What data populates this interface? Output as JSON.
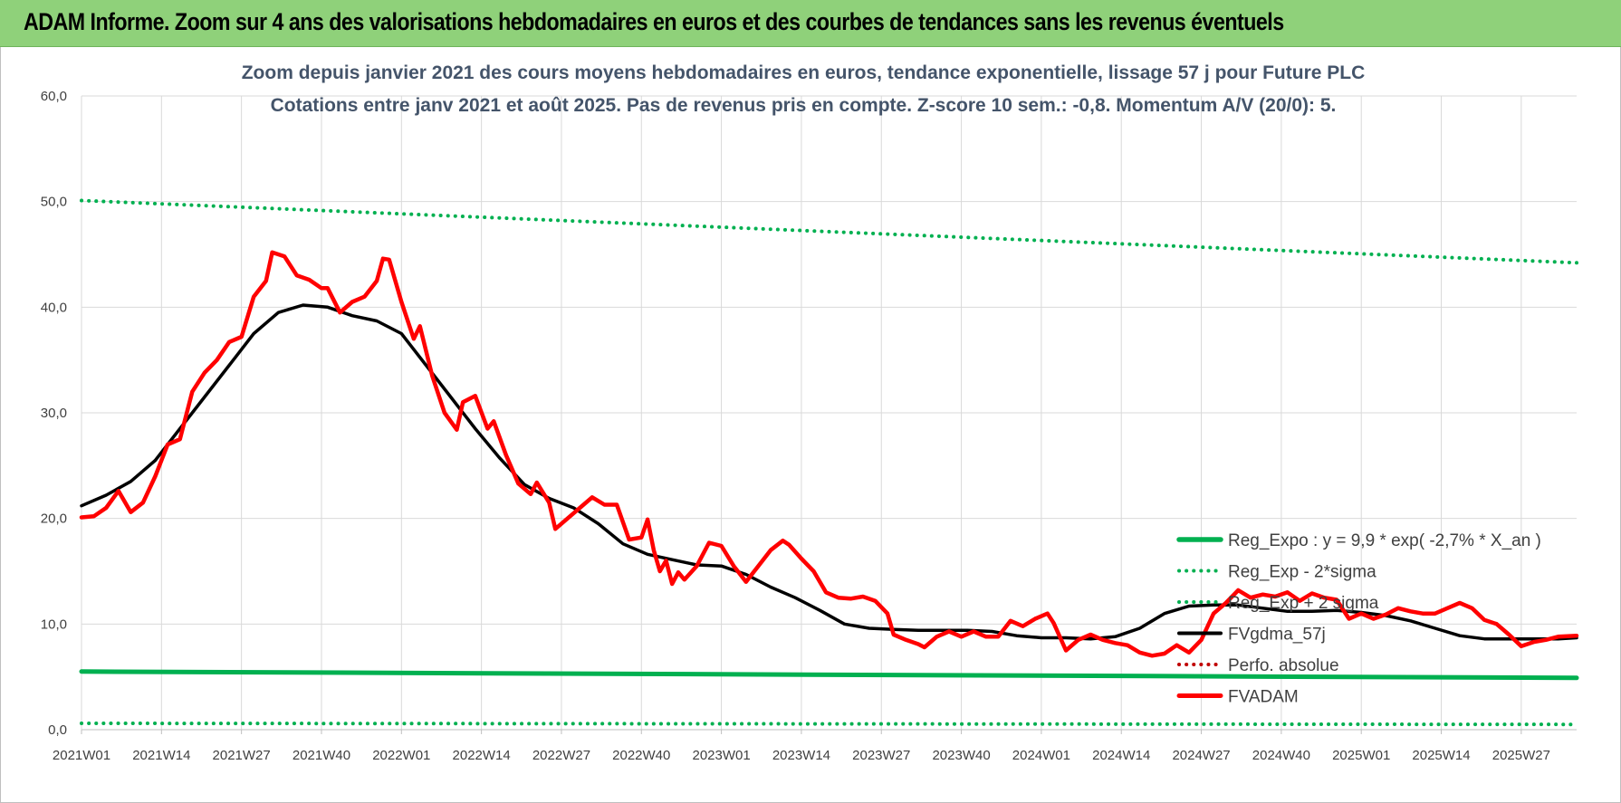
{
  "banner": {
    "title": "ADAM Informe. Zoom sur 4 ans des valorisations hebdomadaires en euros et des courbes de tendances sans les revenus éventuels"
  },
  "colors": {
    "banner": "#8fd17a",
    "fvadam": "#ff0000",
    "fvgdma": "#000000",
    "reg": "#00b050",
    "perfo": "#c00000",
    "grid": "#d9d9d9",
    "title": "#44546a"
  },
  "chart_data": {
    "type": "line",
    "title": "Zoom depuis janvier 2021 des cours moyens hebdomadaires en euros, tendance exponentielle, lissage 57 j pour Future PLC",
    "subtitle": "Cotations entre janv 2021 et août 2025.  Pas de revenus pris en compte. Z-score 10 sem.: -0,8. Momentum A/V (20/0): 5.",
    "ylim": [
      0,
      60
    ],
    "yticks": [
      "0,0",
      "10,0",
      "20,0",
      "30,0",
      "40,0",
      "50,0",
      "60,0"
    ],
    "grid": true,
    "legend_position": "bottom-right",
    "x_tick_labels": [
      {
        "label": "2021W01",
        "week": 0
      },
      {
        "label": "2021W14",
        "week": 13
      },
      {
        "label": "2021W27",
        "week": 26
      },
      {
        "label": "2021W40",
        "week": 39
      },
      {
        "label": "2022W01",
        "week": 52
      },
      {
        "label": "2022W14",
        "week": 65
      },
      {
        "label": "2022W27",
        "week": 78
      },
      {
        "label": "2022W40",
        "week": 91
      },
      {
        "label": "2023W01",
        "week": 104
      },
      {
        "label": "2023W14",
        "week": 117
      },
      {
        "label": "2023W27",
        "week": 130
      },
      {
        "label": "2023W40",
        "week": 143
      },
      {
        "label": "2024W01",
        "week": 156
      },
      {
        "label": "2024W14",
        "week": 169
      },
      {
        "label": "2024W27",
        "week": 182
      },
      {
        "label": "2024W40",
        "week": 195
      },
      {
        "label": "2025W01",
        "week": 208
      },
      {
        "label": "2025W14",
        "week": 221
      },
      {
        "label": "2025W27",
        "week": 234
      }
    ],
    "x_range_weeks": [
      0,
      243
    ],
    "series": [
      {
        "name": "Reg_Expo : y = 9,9 * exp( -2,7% *  X_an )",
        "key": "reg",
        "style": "solid-thick",
        "points": [
          [
            0,
            5.5
          ],
          [
            243,
            4.9
          ]
        ]
      },
      {
        "name": "Reg_Exp - 2*sigma",
        "key": "reg_minus",
        "style": "dotted",
        "points": [
          [
            0,
            0.6
          ],
          [
            243,
            0.5
          ]
        ]
      },
      {
        "name": "Reg_Exp + 2 sigma",
        "key": "reg_plus",
        "style": "dotted",
        "points": [
          [
            0,
            50.1
          ],
          [
            243,
            44.2
          ]
        ]
      },
      {
        "name": "FVgdma_57j",
        "key": "fvgdma",
        "style": "solid",
        "points": [
          [
            0,
            21.2
          ],
          [
            4,
            22.2
          ],
          [
            8,
            23.5
          ],
          [
            12,
            25.5
          ],
          [
            16,
            28.5
          ],
          [
            20,
            31.5
          ],
          [
            24,
            34.5
          ],
          [
            28,
            37.5
          ],
          [
            32,
            39.5
          ],
          [
            36,
            40.2
          ],
          [
            40,
            40.0
          ],
          [
            44,
            39.2
          ],
          [
            48,
            38.7
          ],
          [
            52,
            37.5
          ],
          [
            56,
            34.5
          ],
          [
            60,
            31.5
          ],
          [
            64,
            28.5
          ],
          [
            68,
            25.7
          ],
          [
            72,
            23.2
          ],
          [
            76,
            21.9
          ],
          [
            80,
            21.0
          ],
          [
            84,
            19.5
          ],
          [
            88,
            17.6
          ],
          [
            92,
            16.6
          ],
          [
            96,
            16.1
          ],
          [
            100,
            15.6
          ],
          [
            104,
            15.5
          ],
          [
            108,
            14.7
          ],
          [
            112,
            13.5
          ],
          [
            116,
            12.5
          ],
          [
            120,
            11.3
          ],
          [
            124,
            10.0
          ],
          [
            128,
            9.6
          ],
          [
            132,
            9.5
          ],
          [
            136,
            9.4
          ],
          [
            140,
            9.4
          ],
          [
            144,
            9.4
          ],
          [
            148,
            9.3
          ],
          [
            152,
            8.9
          ],
          [
            156,
            8.7
          ],
          [
            160,
            8.7
          ],
          [
            164,
            8.6
          ],
          [
            168,
            8.8
          ],
          [
            172,
            9.6
          ],
          [
            176,
            11.0
          ],
          [
            180,
            11.7
          ],
          [
            184,
            11.8
          ],
          [
            188,
            11.8
          ],
          [
            192,
            11.5
          ],
          [
            196,
            11.2
          ],
          [
            200,
            11.2
          ],
          [
            204,
            11.3
          ],
          [
            208,
            11.1
          ],
          [
            212,
            10.8
          ],
          [
            216,
            10.3
          ],
          [
            220,
            9.6
          ],
          [
            224,
            8.9
          ],
          [
            228,
            8.6
          ],
          [
            232,
            8.6
          ],
          [
            236,
            8.6
          ],
          [
            240,
            8.6
          ],
          [
            243,
            8.7
          ]
        ]
      },
      {
        "name": "Perfo. absolue",
        "key": "perfo",
        "style": "dotted",
        "points": []
      },
      {
        "name": "FVADAM",
        "key": "fvadam",
        "style": "solid-thick",
        "points": [
          [
            0,
            20.1
          ],
          [
            2,
            20.2
          ],
          [
            4,
            21.0
          ],
          [
            6,
            22.6
          ],
          [
            8,
            20.6
          ],
          [
            10,
            21.5
          ],
          [
            12,
            24.0
          ],
          [
            14,
            27.0
          ],
          [
            16,
            27.5
          ],
          [
            18,
            32.0
          ],
          [
            20,
            33.8
          ],
          [
            22,
            35.0
          ],
          [
            24,
            36.7
          ],
          [
            26,
            37.2
          ],
          [
            28,
            41.0
          ],
          [
            30,
            42.5
          ],
          [
            31,
            45.2
          ],
          [
            33,
            44.8
          ],
          [
            35,
            43.0
          ],
          [
            37,
            42.6
          ],
          [
            39,
            41.8
          ],
          [
            40,
            41.8
          ],
          [
            42,
            39.5
          ],
          [
            44,
            40.5
          ],
          [
            46,
            41.0
          ],
          [
            48,
            42.5
          ],
          [
            49,
            44.6
          ],
          [
            50,
            44.5
          ],
          [
            52,
            40.5
          ],
          [
            54,
            37.0
          ],
          [
            55,
            38.2
          ],
          [
            57,
            33.5
          ],
          [
            59,
            30.0
          ],
          [
            61,
            28.4
          ],
          [
            62,
            31.0
          ],
          [
            64,
            31.6
          ],
          [
            66,
            28.5
          ],
          [
            67,
            29.2
          ],
          [
            69,
            26.0
          ],
          [
            71,
            23.3
          ],
          [
            73,
            22.3
          ],
          [
            74,
            23.4
          ],
          [
            76,
            21.5
          ],
          [
            77,
            19.0
          ],
          [
            79,
            20.0
          ],
          [
            81,
            21.0
          ],
          [
            83,
            22.0
          ],
          [
            85,
            21.3
          ],
          [
            87,
            21.3
          ],
          [
            89,
            18.0
          ],
          [
            91,
            18.2
          ],
          [
            92,
            19.9
          ],
          [
            93,
            17.0
          ],
          [
            94,
            15.0
          ],
          [
            95,
            16.0
          ],
          [
            96,
            13.8
          ],
          [
            97,
            14.9
          ],
          [
            98,
            14.2
          ],
          [
            100,
            15.5
          ],
          [
            102,
            17.7
          ],
          [
            104,
            17.4
          ],
          [
            106,
            15.5
          ],
          [
            108,
            14.0
          ],
          [
            110,
            15.5
          ],
          [
            112,
            17.0
          ],
          [
            114,
            17.9
          ],
          [
            115,
            17.5
          ],
          [
            117,
            16.2
          ],
          [
            119,
            15.0
          ],
          [
            121,
            13.0
          ],
          [
            123,
            12.5
          ],
          [
            125,
            12.4
          ],
          [
            127,
            12.6
          ],
          [
            129,
            12.2
          ],
          [
            131,
            11.0
          ],
          [
            132,
            9.0
          ],
          [
            134,
            8.5
          ],
          [
            136,
            8.1
          ],
          [
            137,
            7.8
          ],
          [
            139,
            8.8
          ],
          [
            141,
            9.3
          ],
          [
            143,
            8.8
          ],
          [
            145,
            9.3
          ],
          [
            147,
            8.8
          ],
          [
            149,
            8.8
          ],
          [
            151,
            10.3
          ],
          [
            153,
            9.8
          ],
          [
            155,
            10.5
          ],
          [
            157,
            11.0
          ],
          [
            158,
            10.1
          ],
          [
            160,
            7.5
          ],
          [
            162,
            8.5
          ],
          [
            164,
            9.0
          ],
          [
            166,
            8.5
          ],
          [
            168,
            8.2
          ],
          [
            170,
            8.0
          ],
          [
            172,
            7.3
          ],
          [
            174,
            7.0
          ],
          [
            176,
            7.2
          ],
          [
            178,
            8.0
          ],
          [
            180,
            7.3
          ],
          [
            182,
            8.5
          ],
          [
            184,
            11.0
          ],
          [
            186,
            12.0
          ],
          [
            188,
            13.2
          ],
          [
            190,
            12.5
          ],
          [
            192,
            12.8
          ],
          [
            194,
            12.6
          ],
          [
            196,
            13.0
          ],
          [
            198,
            12.2
          ],
          [
            200,
            12.9
          ],
          [
            202,
            12.5
          ],
          [
            204,
            12.3
          ],
          [
            206,
            10.5
          ],
          [
            208,
            11.0
          ],
          [
            210,
            10.5
          ],
          [
            212,
            10.9
          ],
          [
            214,
            11.5
          ],
          [
            216,
            11.2
          ],
          [
            218,
            11.0
          ],
          [
            220,
            11.0
          ],
          [
            222,
            11.5
          ],
          [
            224,
            12.0
          ],
          [
            226,
            11.5
          ],
          [
            228,
            10.4
          ],
          [
            230,
            10.0
          ],
          [
            232,
            9.0
          ],
          [
            234,
            7.9
          ],
          [
            236,
            8.3
          ],
          [
            238,
            8.5
          ],
          [
            240,
            8.8
          ],
          [
            243,
            8.9
          ]
        ]
      }
    ],
    "legend_order": [
      "reg",
      "reg_minus",
      "reg_plus",
      "fvgdma",
      "perfo",
      "fvadam"
    ]
  }
}
